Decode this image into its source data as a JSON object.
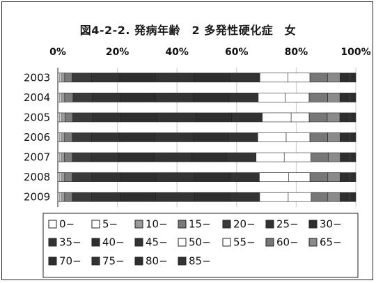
{
  "chart_data": {
    "type": "bar",
    "stacked": "percent",
    "orientation": "horizontal",
    "title": "図4-2-2. 発病年齢　2 多発性硬化症　女",
    "xlim": [
      0,
      100
    ],
    "x_ticks": [
      "0%",
      "20%",
      "40%",
      "60%",
      "80%",
      "100%"
    ],
    "grid": true,
    "legend_position": "bottom",
    "categories": [
      "2003",
      "2004",
      "2005",
      "2006",
      "2007",
      "2008",
      "2009"
    ],
    "series": [
      {
        "name": "0−",
        "fill": "#ffffff",
        "values": [
          0.5,
          0.5,
          0.5,
          0.5,
          0.5,
          0.5,
          0.5
        ]
      },
      {
        "name": "5−",
        "fill": "#ffffff",
        "values": [
          0.6,
          0.6,
          0.6,
          0.6,
          0.6,
          0.6,
          0.6
        ]
      },
      {
        "name": "10−",
        "fill": "#9a9a9a",
        "values": [
          1.2,
          1.2,
          1.3,
          1.2,
          1.2,
          1.2,
          1.2
        ]
      },
      {
        "name": "15−",
        "fill": "#7a7a7a",
        "values": [
          2.5,
          2.8,
          2.6,
          2.6,
          2.7,
          2.6,
          2.6
        ]
      },
      {
        "name": "20−",
        "fill": "#3a3a3a",
        "values": [
          6.5,
          6.4,
          6.6,
          6.5,
          6.4,
          6.6,
          6.5
        ]
      },
      {
        "name": "25−",
        "fill": "#333333",
        "values": [
          9.5,
          9.3,
          9.4,
          9.5,
          9.4,
          9.6,
          9.5
        ]
      },
      {
        "name": "30−",
        "fill": "#2e2e2e",
        "values": [
          12.0,
          11.8,
          12.1,
          11.9,
          12.0,
          11.9,
          12.0
        ]
      },
      {
        "name": "35−",
        "fill": "#333333",
        "values": [
          13.0,
          12.8,
          12.9,
          13.0,
          12.8,
          12.9,
          13.0
        ]
      },
      {
        "name": "40−",
        "fill": "#2e2e2e",
        "values": [
          12.0,
          11.8,
          11.8,
          11.7,
          11.9,
          11.8,
          11.7
        ]
      },
      {
        "name": "45−",
        "fill": "#333333",
        "values": [
          10.0,
          9.8,
          10.2,
          10.0,
          10.1,
          10.0,
          10.2
        ]
      },
      {
        "name": "50−",
        "fill": "#ffffff",
        "values": [
          9.4,
          9.0,
          9.6,
          9.6,
          9.6,
          9.8,
          9.6
        ]
      },
      {
        "name": "55−",
        "fill": "#ffffff",
        "values": [
          7.4,
          8.0,
          6.0,
          8.0,
          9.1,
          7.2,
          7.7
        ]
      },
      {
        "name": "60−",
        "fill": "#777777",
        "values": [
          5.9,
          6.2,
          6.0,
          6.0,
          5.9,
          6.0,
          5.6
        ]
      },
      {
        "name": "65−",
        "fill": "#8a8a8a",
        "values": [
          4.2,
          4.1,
          4.2,
          4.2,
          4.1,
          4.1,
          4.1
        ]
      },
      {
        "name": "70−",
        "fill": "#2e2e2e",
        "values": [
          2.5,
          2.5,
          2.5,
          2.5,
          2.5,
          2.5,
          2.5
        ]
      },
      {
        "name": "75−",
        "fill": "#333333",
        "values": [
          1.5,
          1.5,
          1.5,
          1.5,
          1.5,
          1.5,
          1.5
        ]
      },
      {
        "name": "80−",
        "fill": "#2e2e2e",
        "values": [
          0.8,
          0.8,
          0.8,
          0.8,
          0.8,
          0.8,
          0.8
        ]
      },
      {
        "name": "85−",
        "fill": "#333333",
        "values": [
          0.5,
          0.5,
          0.5,
          0.5,
          0.5,
          0.5,
          0.5
        ]
      }
    ]
  }
}
